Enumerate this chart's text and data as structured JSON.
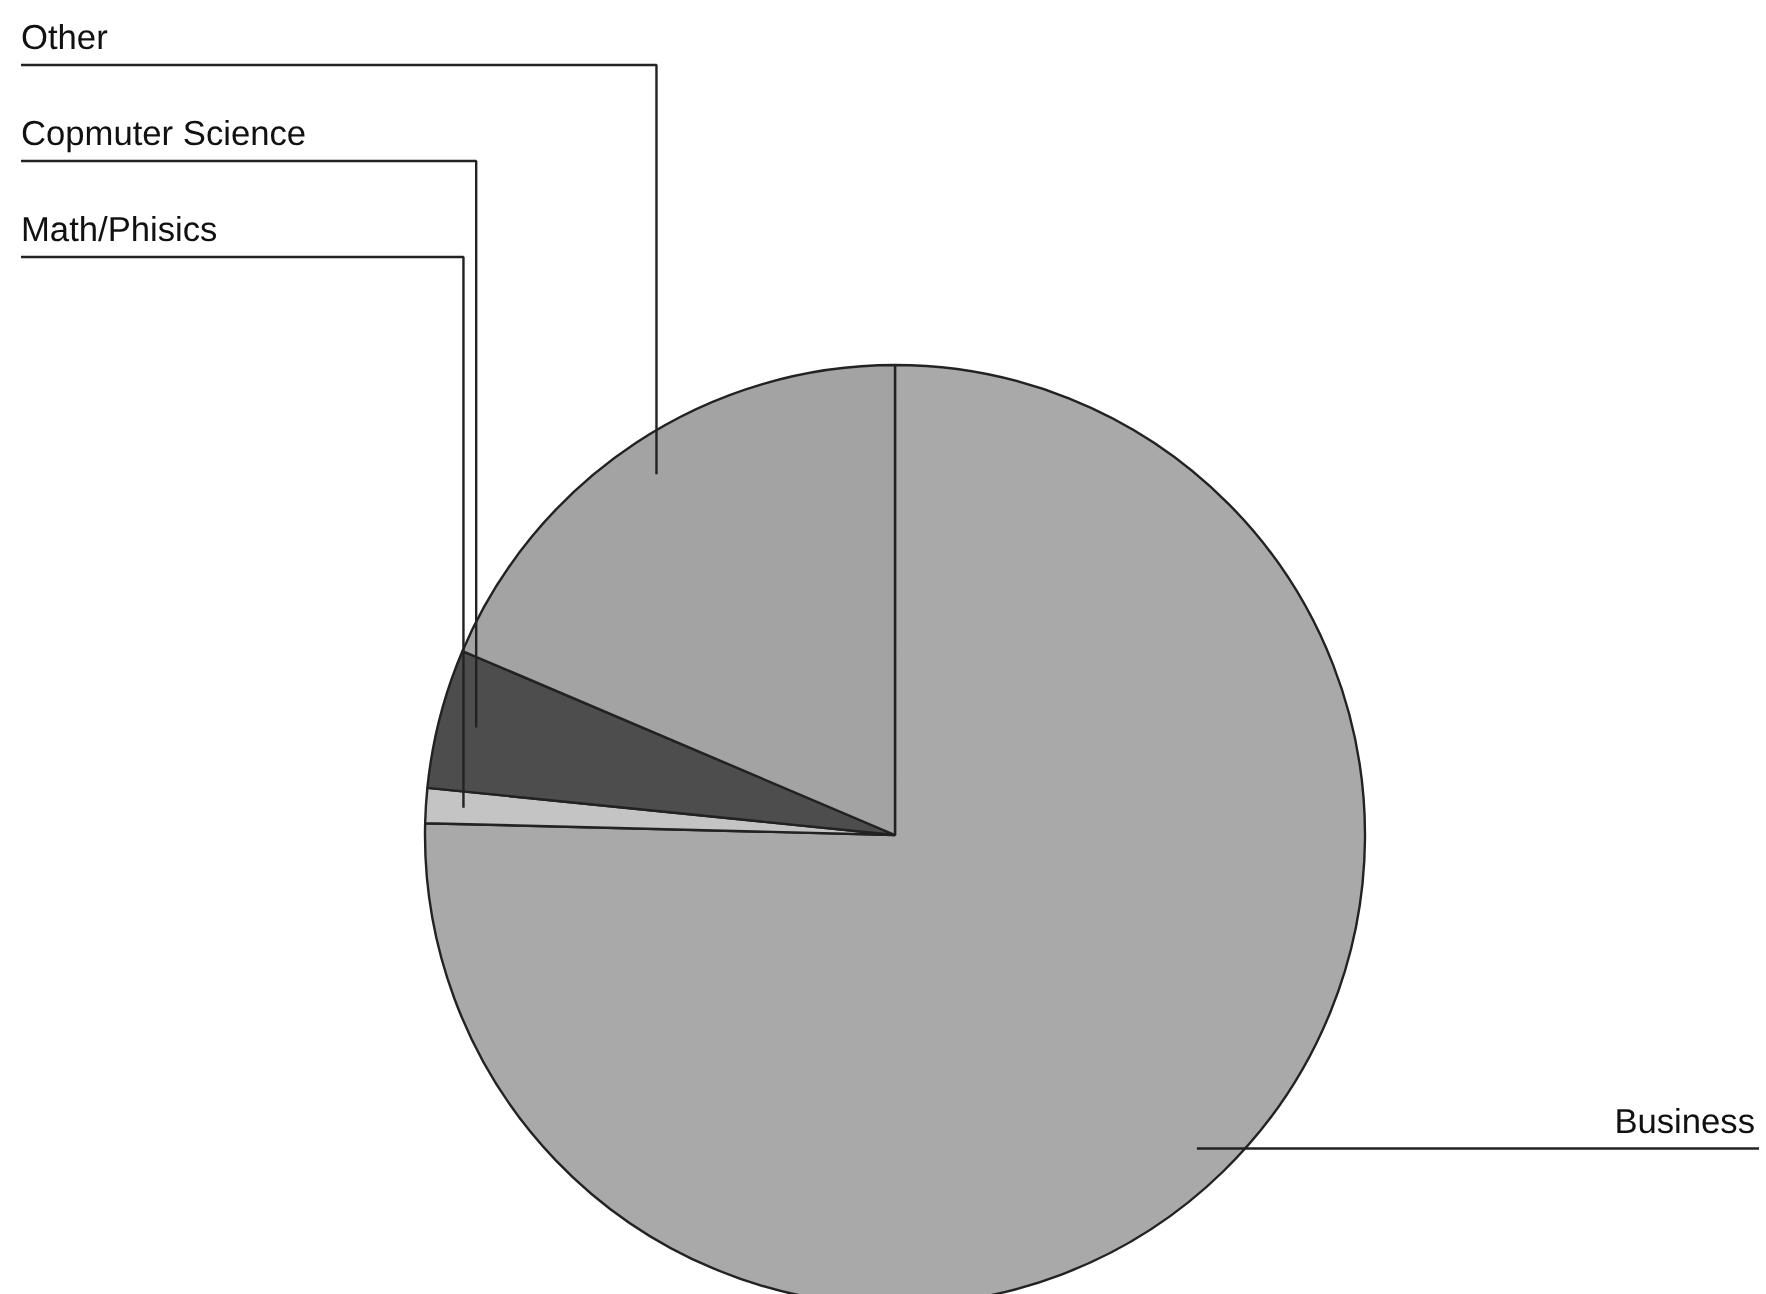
{
  "chart_data": {
    "type": "pie",
    "categories": [
      "Business",
      "Math/Phisics",
      "Copmuter Science",
      "Other"
    ],
    "values": [
      75.4,
      1.2,
      4.8,
      18.6
    ],
    "colors": [
      "#a9a9a9",
      "#c4c4c4",
      "#4d4d4d",
      "#a3a3a3"
    ]
  }
}
